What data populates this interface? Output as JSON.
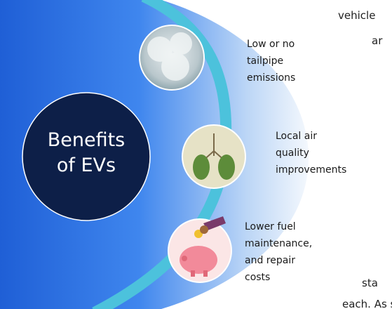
{
  "title_lines": [
    "Benefits",
    "of EVs"
  ],
  "items": [
    {
      "label_lines": [
        "Low or no",
        "tailpipe",
        "emissions"
      ]
    },
    {
      "label_lines": [
        "Local air",
        "quality",
        "improvements"
      ]
    },
    {
      "label_lines": [
        "Lower fuel",
        "maintenance,",
        "and repair",
        "costs"
      ]
    }
  ],
  "background_text": [
    "vehicle",
    "ar",
    "sta",
    "each. As s"
  ]
}
